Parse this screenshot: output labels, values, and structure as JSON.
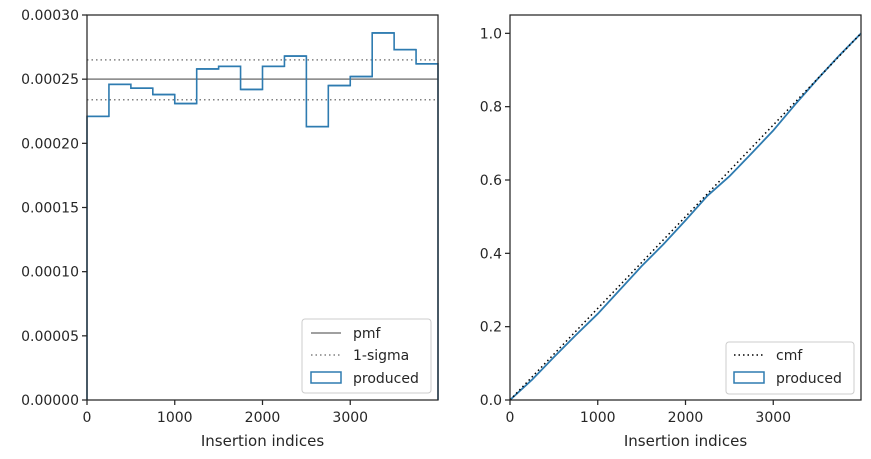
{
  "colors": {
    "produced": "#2e7bb0",
    "pmf": "#808080",
    "sigma": "#808080",
    "cmf": "#000000",
    "axes": "#262626"
  },
  "chart_data": [
    {
      "type": "histogram-step",
      "xlabel": "Insertion indices",
      "ylabel": "",
      "xlim": [
        0,
        4000
      ],
      "ylim": [
        0,
        0.0003
      ],
      "xticks": [
        0,
        1000,
        2000,
        3000
      ],
      "xtick_labels": [
        "0",
        "1000",
        "2000",
        "3000"
      ],
      "yticks": [
        0,
        5e-05,
        0.0001,
        0.00015,
        0.0002,
        0.00025,
        0.0003
      ],
      "ytick_labels": [
        "0.00000",
        "0.00005",
        "0.00010",
        "0.00015",
        "0.00020",
        "0.00025",
        "0.00030"
      ],
      "bin_edges": [
        0,
        250,
        500,
        750,
        1000,
        1250,
        1500,
        1750,
        2000,
        2250,
        2500,
        2750,
        3000,
        3250,
        3500,
        3750,
        4000
      ],
      "values": [
        0.000221,
        0.000246,
        0.000243,
        0.000238,
        0.000231,
        0.000258,
        0.00026,
        0.000242,
        0.00026,
        0.000268,
        0.000213,
        0.000245,
        0.000252,
        0.000286,
        0.000273,
        0.000262
      ],
      "pmf": 0.00025,
      "sigma_band": [
        0.000234,
        0.000265
      ],
      "legend": {
        "position": "lower-right",
        "entries": [
          "pmf",
          "1-sigma",
          "produced"
        ]
      }
    },
    {
      "type": "line",
      "xlabel": "Insertion indices",
      "ylabel": "",
      "xlim": [
        0,
        4000
      ],
      "ylim": [
        0,
        1.05
      ],
      "xticks": [
        0,
        1000,
        2000,
        3000
      ],
      "xtick_labels": [
        "0",
        "1000",
        "2000",
        "3000"
      ],
      "yticks": [
        0,
        0.2,
        0.4,
        0.6,
        0.8,
        1.0
      ],
      "ytick_labels": [
        "0.0",
        "0.2",
        "0.4",
        "0.6",
        "0.8",
        "1.0"
      ],
      "series": [
        {
          "name": "cmf",
          "x": [
            0,
            4000
          ],
          "y": [
            0,
            1.0
          ]
        },
        {
          "name": "produced",
          "x": [
            0,
            250,
            500,
            750,
            1000,
            1250,
            1500,
            1750,
            2000,
            2250,
            2500,
            2750,
            3000,
            3250,
            3500,
            3750,
            4000
          ],
          "y": [
            0,
            0.055,
            0.117,
            0.177,
            0.235,
            0.3,
            0.365,
            0.425,
            0.49,
            0.557,
            0.61,
            0.672,
            0.735,
            0.806,
            0.874,
            0.939,
            1.0
          ]
        }
      ],
      "legend": {
        "position": "lower-right",
        "entries": [
          "cmf",
          "produced"
        ]
      }
    }
  ]
}
